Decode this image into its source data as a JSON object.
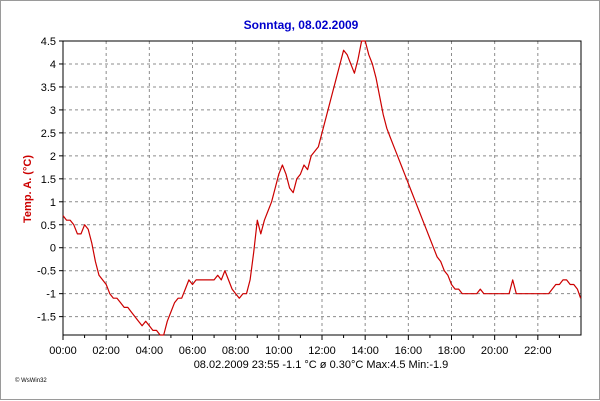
{
  "chart_data": {
    "type": "line",
    "title": "Sonntag, 08.02.2009",
    "ylabel": "Temp. A. (°C)",
    "xlabel": "",
    "xlim": [
      0,
      1440
    ],
    "ylim": [
      -1.9,
      4.5
    ],
    "x_ticks": [
      {
        "label": "00:00",
        "value": 0
      },
      {
        "label": "02:00",
        "value": 120
      },
      {
        "label": "04:00",
        "value": 240
      },
      {
        "label": "06:00",
        "value": 360
      },
      {
        "label": "08:00",
        "value": 480
      },
      {
        "label": "10:00",
        "value": 600
      },
      {
        "label": "12:00",
        "value": 720
      },
      {
        "label": "14:00",
        "value": 840
      },
      {
        "label": "16:00",
        "value": 960
      },
      {
        "label": "18:00",
        "value": 1080
      },
      {
        "label": "20:00",
        "value": 1200
      },
      {
        "label": "22:00",
        "value": 1320
      }
    ],
    "y_ticks": [
      {
        "label": "4.5",
        "value": 4.5
      },
      {
        "label": "4",
        "value": 4
      },
      {
        "label": "3.5",
        "value": 3.5
      },
      {
        "label": "3",
        "value": 3
      },
      {
        "label": "2.5",
        "value": 2.5
      },
      {
        "label": "2",
        "value": 2
      },
      {
        "label": "1.5",
        "value": 1.5
      },
      {
        "label": "1",
        "value": 1
      },
      {
        "label": "0.5",
        "value": 0.5
      },
      {
        "label": "0",
        "value": 0
      },
      {
        "label": "-0.5",
        "value": -0.5
      },
      {
        "label": "-1",
        "value": -1
      },
      {
        "label": "-1.5",
        "value": -1.5
      }
    ],
    "grid": true,
    "series": [
      {
        "color": "#cc0000",
        "x": [
          0,
          10,
          20,
          30,
          40,
          50,
          60,
          70,
          80,
          90,
          100,
          110,
          120,
          130,
          140,
          150,
          160,
          170,
          180,
          190,
          200,
          210,
          220,
          230,
          240,
          250,
          260,
          270,
          280,
          290,
          300,
          310,
          320,
          330,
          340,
          350,
          360,
          370,
          380,
          390,
          400,
          410,
          420,
          430,
          440,
          450,
          460,
          470,
          480,
          490,
          500,
          510,
          520,
          530,
          540,
          550,
          560,
          570,
          580,
          590,
          600,
          610,
          620,
          630,
          640,
          650,
          660,
          670,
          680,
          690,
          700,
          710,
          720,
          730,
          740,
          750,
          760,
          770,
          780,
          790,
          800,
          810,
          820,
          830,
          840,
          850,
          860,
          870,
          880,
          890,
          900,
          910,
          920,
          930,
          940,
          950,
          960,
          970,
          980,
          990,
          1000,
          1010,
          1020,
          1030,
          1040,
          1050,
          1060,
          1070,
          1080,
          1090,
          1100,
          1110,
          1120,
          1130,
          1140,
          1150,
          1160,
          1170,
          1180,
          1190,
          1200,
          1210,
          1220,
          1230,
          1240,
          1250,
          1260,
          1270,
          1280,
          1290,
          1300,
          1310,
          1320,
          1330,
          1340,
          1350,
          1360,
          1370,
          1380,
          1390,
          1400,
          1410,
          1420,
          1430,
          1439
        ],
        "values": [
          0.7,
          0.6,
          0.6,
          0.5,
          0.3,
          0.3,
          0.5,
          0.4,
          0.1,
          -0.3,
          -0.6,
          -0.7,
          -0.8,
          -1.0,
          -1.1,
          -1.1,
          -1.2,
          -1.3,
          -1.3,
          -1.4,
          -1.5,
          -1.6,
          -1.7,
          -1.6,
          -1.7,
          -1.8,
          -1.8,
          -1.9,
          -1.9,
          -1.6,
          -1.4,
          -1.2,
          -1.1,
          -1.1,
          -0.9,
          -0.7,
          -0.8,
          -0.7,
          -0.7,
          -0.7,
          -0.7,
          -0.7,
          -0.7,
          -0.6,
          -0.7,
          -0.5,
          -0.7,
          -0.9,
          -1.0,
          -1.1,
          -1.0,
          -1.0,
          -0.7,
          -0.1,
          0.6,
          0.3,
          0.6,
          0.8,
          1.0,
          1.3,
          1.6,
          1.8,
          1.6,
          1.3,
          1.2,
          1.5,
          1.6,
          1.8,
          1.7,
          2.0,
          2.1,
          2.2,
          2.5,
          2.8,
          3.1,
          3.4,
          3.7,
          4.0,
          4.3,
          4.2,
          4.0,
          3.8,
          4.1,
          4.5,
          4.5,
          4.2,
          4.0,
          3.7,
          3.3,
          2.9,
          2.6,
          2.4,
          2.2,
          2.0,
          1.8,
          1.6,
          1.4,
          1.2,
          1.0,
          0.8,
          0.6,
          0.4,
          0.2,
          0.0,
          -0.2,
          -0.3,
          -0.5,
          -0.6,
          -0.8,
          -0.9,
          -0.9,
          -1.0,
          -1.0,
          -1.0,
          -1.0,
          -1.0,
          -0.9,
          -1.0,
          -1.0,
          -1.0,
          -1.0,
          -1.0,
          -1.0,
          -1.0,
          -1.0,
          -0.7,
          -1.0,
          -1.0,
          -1.0,
          -1.0,
          -1.0,
          -1.0,
          -1.0,
          -1.0,
          -1.0,
          -1.0,
          -0.9,
          -0.8,
          -0.8,
          -0.7,
          -0.7,
          -0.8,
          -0.8,
          -0.9,
          -1.1
        ]
      }
    ],
    "footer": "08.02.2009   23:55   -1.1 °C   ø 0.30°C  Max:4.5  Min:-1.9",
    "credit": "© WsWin32",
    "colors": {
      "line": "#cc0000",
      "grid": "#8c8c8c",
      "title": "#0000cc",
      "ylabel": "#cc0000",
      "axis": "#000000"
    }
  }
}
